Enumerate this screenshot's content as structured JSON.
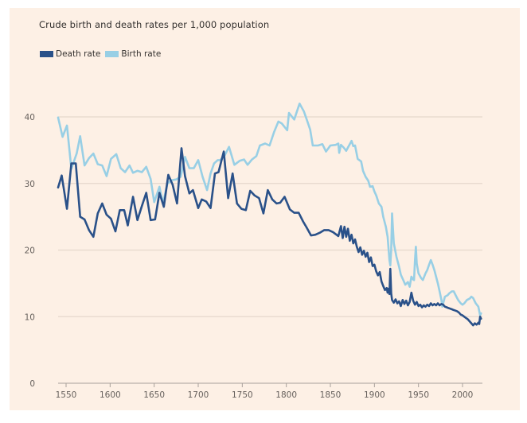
{
  "chart_data": {
    "type": "line",
    "title": "Crude birth and death rates per 1,000 population",
    "xlabel": "",
    "ylabel": "",
    "xlim": [
      1541,
      2021
    ],
    "ylim": [
      0,
      45
    ],
    "grid": true,
    "legend": "top-left",
    "yticks": [
      0,
      10,
      20,
      30,
      40
    ],
    "xticks": [
      1550,
      1600,
      1650,
      1700,
      1750,
      1800,
      1850,
      1900,
      1950,
      2000
    ],
    "series": [
      {
        "name": "Death rate",
        "color": "#2a5189",
        "x": [
          1541,
          1545,
          1551,
          1556,
          1561,
          1566,
          1571,
          1576,
          1581,
          1586,
          1591,
          1596,
          1601,
          1606,
          1611,
          1616,
          1620,
          1626,
          1631,
          1636,
          1641,
          1646,
          1651,
          1656,
          1661,
          1666,
          1671,
          1676,
          1681,
          1685,
          1690,
          1694,
          1700,
          1704,
          1709,
          1714,
          1719,
          1723,
          1729,
          1734,
          1739,
          1744,
          1749,
          1754,
          1759,
          1764,
          1769,
          1774,
          1779,
          1784,
          1789,
          1793,
          1798,
          1804,
          1809,
          1814,
          1819,
          1823,
          1828,
          1833,
          1838,
          1843,
          1848,
          1853,
          1859,
          1862,
          1864,
          1866,
          1868,
          1870,
          1872,
          1874,
          1876,
          1878,
          1880,
          1882,
          1884,
          1886,
          1888,
          1890,
          1892,
          1894,
          1896,
          1898,
          1900,
          1902,
          1904,
          1906,
          1908,
          1910,
          1912,
          1914,
          1915,
          1916,
          1917,
          1918,
          1919,
          1920,
          1922,
          1924,
          1926,
          1928,
          1930,
          1932,
          1934,
          1936,
          1938,
          1940,
          1941,
          1942,
          1944,
          1946,
          1948,
          1950,
          1952,
          1954,
          1956,
          1958,
          1960,
          1962,
          1964,
          1966,
          1968,
          1970,
          1972,
          1974,
          1976,
          1978,
          1980,
          1982,
          1984,
          1986,
          1988,
          1990,
          1992,
          1994,
          1996,
          1998,
          2000,
          2002,
          2004,
          2006,
          2008,
          2010,
          2012,
          2014,
          2016,
          2018,
          2019,
          2020,
          2021
        ],
        "values": [
          29.4,
          31.2,
          26.2,
          33,
          33,
          25,
          24.6,
          23,
          22,
          25.5,
          27,
          25.3,
          24.7,
          22.8,
          26,
          26,
          23.7,
          28,
          24.5,
          26.6,
          28.6,
          24.5,
          24.6,
          28.6,
          26.5,
          31.3,
          29.8,
          27,
          35.3,
          31.1,
          28.5,
          29,
          26.3,
          27.6,
          27.3,
          26.3,
          31.5,
          31.7,
          34.8,
          27.8,
          31.5,
          27,
          26.2,
          26,
          28.9,
          28.2,
          27.8,
          25.5,
          29,
          27.6,
          27,
          27.1,
          28,
          26.1,
          25.6,
          25.6,
          24.3,
          23.4,
          22.2,
          22.3,
          22.6,
          23,
          23,
          22.7,
          22.1,
          23.6,
          21.8,
          23.5,
          22,
          23.2,
          21.4,
          22.3,
          21,
          21.6,
          20.5,
          19.7,
          20.4,
          19.3,
          19.9,
          19,
          19.6,
          18.2,
          18.9,
          17.6,
          17.8,
          16.8,
          16.2,
          16.7,
          15.3,
          14.6,
          14,
          14.3,
          13.6,
          14.2,
          13.4,
          17.2,
          13.5,
          12.5,
          12.1,
          12.6,
          12,
          12.3,
          11.6,
          12.5,
          11.9,
          12.4,
          11.7,
          12.2,
          12.9,
          13.6,
          12.4,
          11.8,
          12.2,
          11.6,
          11.8,
          11.4,
          11.7,
          11.5,
          11.8,
          11.6,
          12,
          11.7,
          11.9,
          11.7,
          12,
          11.7,
          11.9,
          11.8,
          11.5,
          11.4,
          11.3,
          11.2,
          11.1,
          11,
          10.9,
          10.8,
          10.6,
          10.3,
          10.2,
          10,
          9.8,
          9.6,
          9.3,
          9,
          8.7,
          9,
          8.8,
          9.1,
          8.9,
          10,
          9.7
        ]
      },
      {
        "name": "Birth rate",
        "color": "#98cfe5",
        "x": [
          1541,
          1546,
          1551,
          1556,
          1562,
          1566,
          1571,
          1576,
          1581,
          1586,
          1591,
          1596,
          1601,
          1607,
          1612,
          1617,
          1622,
          1626,
          1631,
          1636,
          1641,
          1646,
          1650,
          1656,
          1660,
          1665,
          1670,
          1675,
          1680,
          1685,
          1690,
          1695,
          1700,
          1705,
          1710,
          1714,
          1718,
          1722,
          1725,
          1730,
          1735,
          1741,
          1747,
          1752,
          1756,
          1761,
          1766,
          1770,
          1776,
          1781,
          1786,
          1791,
          1795,
          1801,
          1803,
          1809,
          1815,
          1820,
          1824,
          1827,
          1830,
          1836,
          1841,
          1845,
          1850,
          1856,
          1859,
          1860,
          1862,
          1865,
          1868,
          1870,
          1874,
          1876,
          1878,
          1881,
          1885,
          1887,
          1890,
          1893,
          1895,
          1898,
          1900,
          1902,
          1905,
          1908,
          1910,
          1913,
          1915,
          1917,
          1918,
          1919,
          1920,
          1922,
          1925,
          1928,
          1930,
          1933,
          1935,
          1938,
          1940,
          1942,
          1944,
          1945,
          1946,
          1947,
          1948,
          1950,
          1953,
          1955,
          1958,
          1960,
          1962,
          1964,
          1966,
          1968,
          1970,
          1972,
          1974,
          1976,
          1977,
          1980,
          1983,
          1985,
          1988,
          1990,
          1993,
          1995,
          1998,
          2000,
          2002,
          2005,
          2008,
          2010,
          2012,
          2015,
          2018,
          2020,
          2021
        ],
        "values": [
          39.9,
          37,
          38.7,
          32.2,
          34.5,
          37.1,
          32.7,
          33.8,
          34.5,
          32.9,
          32.7,
          31.1,
          33.7,
          34.4,
          32.3,
          31.7,
          32.7,
          31.6,
          31.9,
          31.7,
          32.5,
          30.7,
          27.2,
          29.5,
          27,
          30,
          30.5,
          30.6,
          31,
          34,
          32.3,
          32.3,
          33.5,
          31,
          29,
          31.5,
          33,
          33.5,
          33.5,
          34.2,
          35.5,
          32.8,
          33.4,
          33.6,
          32.8,
          33.6,
          34.1,
          35.7,
          36,
          35.7,
          37.7,
          39.3,
          39,
          38,
          40.6,
          39.6,
          42,
          40.8,
          39.3,
          38.1,
          35.7,
          35.7,
          35.9,
          34.8,
          35.7,
          35.8,
          36,
          34.6,
          35.8,
          35.4,
          34.9,
          35.4,
          36.4,
          35.6,
          35.7,
          33.7,
          33.3,
          31.9,
          31,
          30.4,
          29.5,
          29.6,
          28.8,
          28.2,
          27,
          26.5,
          25,
          23.5,
          22,
          18.5,
          17.7,
          20,
          25.5,
          21,
          19,
          17.5,
          16.3,
          15.4,
          14.8,
          15.2,
          14.5,
          16,
          15.6,
          15.5,
          18.5,
          20.5,
          18,
          16.5,
          15.8,
          15.5,
          16.5,
          17,
          17.8,
          18.5,
          17.8,
          17,
          16,
          15,
          13.8,
          12.5,
          11.5,
          13,
          13.2,
          13.5,
          13.8,
          13.8,
          13,
          12.5,
          12,
          11.8,
          12,
          12.5,
          12.7,
          13,
          12.8,
          12,
          11.5,
          10.2,
          10.5
        ]
      }
    ]
  }
}
